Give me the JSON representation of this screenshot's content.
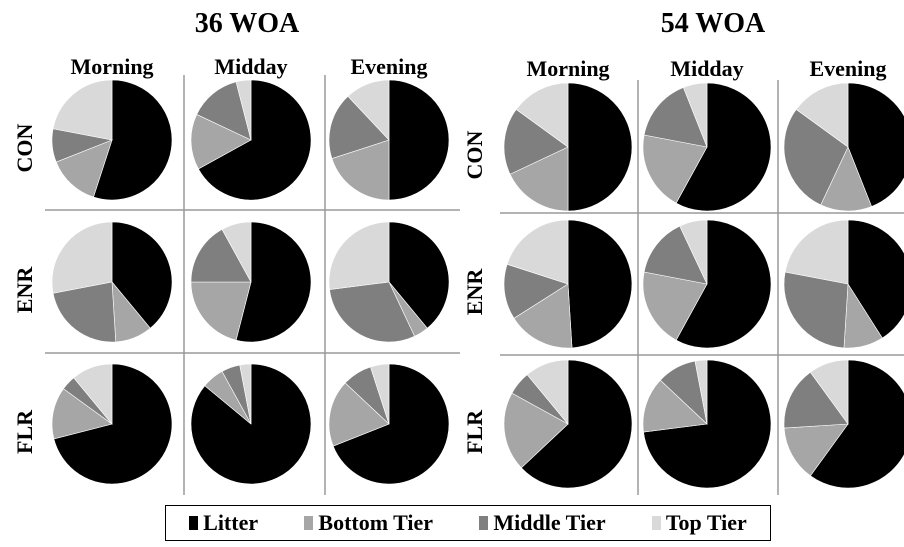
{
  "chart_data": {
    "type": "pie",
    "colors": {
      "Litter": "#000000",
      "Bottom Tier": "#a6a6a6",
      "Middle Tier": "#7f7f7f",
      "Top Tier": "#d9d9d9"
    },
    "legend": {
      "placement": "bottom",
      "entries": [
        "Litter",
        "Bottom Tier",
        "Middle Tier",
        "Top Tier"
      ]
    },
    "panels": [
      {
        "title": "36 WOA",
        "columns": [
          "Morning",
          "Midday",
          "Evening"
        ],
        "rows": [
          "CON",
          "ENR",
          "FLR"
        ],
        "pies": [
          [
            {
              "Litter": 55,
              "Bottom Tier": 14,
              "Middle Tier": 9,
              "Top Tier": 22
            },
            {
              "Litter": 67,
              "Bottom Tier": 15,
              "Middle Tier": 14,
              "Top Tier": 4
            },
            {
              "Litter": 50,
              "Bottom Tier": 20,
              "Middle Tier": 18,
              "Top Tier": 12
            }
          ],
          [
            {
              "Litter": 39,
              "Bottom Tier": 10,
              "Middle Tier": 23,
              "Top Tier": 28
            },
            {
              "Litter": 54,
              "Bottom Tier": 21,
              "Middle Tier": 17,
              "Top Tier": 8
            },
            {
              "Litter": 39,
              "Bottom Tier": 4,
              "Middle Tier": 30,
              "Top Tier": 27
            }
          ],
          [
            {
              "Litter": 71,
              "Bottom Tier": 14,
              "Middle Tier": 4,
              "Top Tier": 11
            },
            {
              "Litter": 86,
              "Bottom Tier": 6,
              "Middle Tier": 5,
              "Top Tier": 3
            },
            {
              "Litter": 69,
              "Bottom Tier": 18,
              "Middle Tier": 8,
              "Top Tier": 5
            }
          ]
        ]
      },
      {
        "title": "54 WOA",
        "columns": [
          "Morning",
          "Midday",
          "Evening"
        ],
        "rows": [
          "CON",
          "ENR",
          "FLR"
        ],
        "pies": [
          [
            {
              "Litter": 50,
              "Bottom Tier": 18,
              "Middle Tier": 17,
              "Top Tier": 15
            },
            {
              "Litter": 58,
              "Bottom Tier": 20,
              "Middle Tier": 16,
              "Top Tier": 6
            },
            {
              "Litter": 44,
              "Bottom Tier": 13,
              "Middle Tier": 28,
              "Top Tier": 15
            }
          ],
          [
            {
              "Litter": 49,
              "Bottom Tier": 17,
              "Middle Tier": 14,
              "Top Tier": 20
            },
            {
              "Litter": 58,
              "Bottom Tier": 20,
              "Middle Tier": 15,
              "Top Tier": 7
            },
            {
              "Litter": 41,
              "Bottom Tier": 10,
              "Middle Tier": 27,
              "Top Tier": 22
            }
          ],
          [
            {
              "Litter": 63,
              "Bottom Tier": 20,
              "Middle Tier": 6,
              "Top Tier": 11
            },
            {
              "Litter": 73,
              "Bottom Tier": 14,
              "Middle Tier": 10,
              "Top Tier": 3
            },
            {
              "Litter": 60,
              "Bottom Tier": 14,
              "Middle Tier": 16,
              "Top Tier": 10
            }
          ]
        ]
      }
    ]
  }
}
